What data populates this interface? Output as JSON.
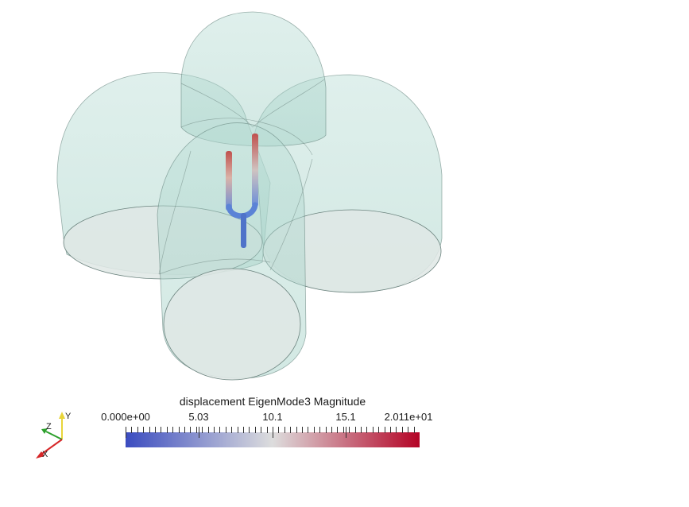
{
  "scalar_bar": {
    "title": "displacement EigenMode3 Magnitude",
    "labels": [
      "0.000e+00",
      "5.03",
      "10.1",
      "15.1",
      "2.011e+01"
    ],
    "range": [
      0,
      20.11
    ],
    "colormap": [
      "#3b4cc0",
      "#dddddd",
      "#b40426"
    ]
  },
  "orientation_axes": {
    "x_label": "X",
    "y_label": "Y",
    "z_label": "Z",
    "x_color": "#d62728",
    "y_color": "#e8d53a",
    "z_color": "#2ca02c"
  },
  "scene": {
    "shell_color": "#a8d5cc",
    "shell_opacity": 0.35,
    "object": "tuning-fork"
  }
}
